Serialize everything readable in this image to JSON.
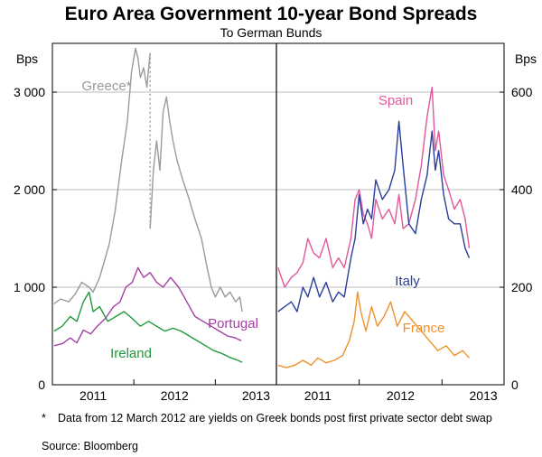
{
  "chart_data": {
    "type": "line",
    "title": "Euro Area Government 10-year Bond Spreads",
    "subtitle": "To German Bunds",
    "panels": [
      {
        "name": "left",
        "ylabel": "Bps",
        "ylim": [
          0,
          3500
        ],
        "yticks": [
          0,
          1000,
          2000,
          3000
        ],
        "ytick_labels": [
          "0",
          "1 000",
          "2 000",
          "3 000"
        ],
        "xlim": [
          2010.5,
          2013.25
        ],
        "xticks": [
          2011,
          2012,
          2013
        ],
        "xtick_labels": [
          "2011",
          "2012",
          "2013"
        ],
        "series": [
          {
            "name": "Greece*",
            "label": "Greece*",
            "color": "#9a9a9a",
            "x": [
              2010.52,
              2010.6,
              2010.7,
              2010.78,
              2010.86,
              2010.95,
              2011.0,
              2011.08,
              2011.15,
              2011.2,
              2011.27,
              2011.35,
              2011.42,
              2011.47,
              2011.52,
              2011.55,
              2011.58,
              2011.62,
              2011.66,
              2011.7
            ],
            "y": [
              830,
              880,
              850,
              930,
              1050,
              1000,
              950,
              1100,
              1300,
              1450,
              1780,
              2300,
              2700,
              3200,
              3450,
              3350,
              3150,
              3250,
              3050,
              3400
            ]
          },
          {
            "name": "Greece* (gap)",
            "label": "",
            "color": "#9a9a9a",
            "dashed": true,
            "x": [
              2011.7,
              2011.7
            ],
            "y": [
              3400,
              1600
            ]
          },
          {
            "name": "Greece* (post)",
            "label": "",
            "color": "#9a9a9a",
            "x": [
              2011.7,
              2011.74,
              2011.78,
              2011.82,
              2011.86,
              2011.9,
              2011.94,
              2011.98,
              2012.03,
              2012.1,
              2012.18,
              2012.25,
              2012.33,
              2012.4,
              2012.45,
              2012.5,
              2012.56,
              2012.62,
              2012.68,
              2012.75,
              2012.8,
              2012.83
            ],
            "y": [
              1600,
              2200,
              2500,
              2200,
              2800,
              2950,
              2700,
              2500,
              2300,
              2100,
              1900,
              1700,
              1500,
              1200,
              1000,
              900,
              1000,
              900,
              950,
              850,
              900,
              750
            ]
          },
          {
            "name": "Portugal",
            "label": "Portugal",
            "color": "#a340a3",
            "x": [
              2010.52,
              2010.62,
              2010.72,
              2010.8,
              2010.88,
              2010.97,
              2011.05,
              2011.15,
              2011.25,
              2011.33,
              2011.4,
              2011.48,
              2011.55,
              2011.62,
              2011.7,
              2011.78,
              2011.86,
              2011.95,
              2012.05,
              2012.15,
              2012.25,
              2012.35,
              2012.45,
              2012.55,
              2012.65,
              2012.75,
              2012.82
            ],
            "y": [
              400,
              420,
              480,
              430,
              560,
              520,
              600,
              680,
              800,
              850,
              1000,
              1050,
              1200,
              1100,
              1150,
              1050,
              1000,
              1100,
              1000,
              850,
              700,
              650,
              600,
              550,
              500,
              480,
              450
            ]
          },
          {
            "name": "Ireland",
            "label": "Ireland",
            "color": "#1e9a3a",
            "x": [
              2010.52,
              2010.62,
              2010.72,
              2010.8,
              2010.88,
              2010.95,
              2011.0,
              2011.08,
              2011.18,
              2011.28,
              2011.38,
              2011.48,
              2011.58,
              2011.68,
              2011.78,
              2011.88,
              2011.98,
              2012.08,
              2012.18,
              2012.28,
              2012.38,
              2012.48,
              2012.58,
              2012.68,
              2012.78,
              2012.83
            ],
            "y": [
              550,
              600,
              700,
              650,
              850,
              950,
              750,
              800,
              650,
              700,
              750,
              680,
              600,
              650,
              600,
              550,
              580,
              550,
              500,
              450,
              400,
              350,
              320,
              280,
              250,
              230
            ]
          }
        ]
      },
      {
        "name": "right",
        "ylabel": "Bps",
        "ylim": [
          0,
          700
        ],
        "yticks": [
          0,
          200,
          400,
          600
        ],
        "ytick_labels": [
          "0",
          "200",
          "400",
          "600"
        ],
        "xlim": [
          2010.5,
          2013.25
        ],
        "xticks": [
          2011,
          2012,
          2013
        ],
        "xtick_labels": [
          "2011",
          "2012",
          "2013"
        ],
        "series": [
          {
            "name": "Spain",
            "label": "Spain",
            "color": "#e2589a",
            "x": [
              2010.52,
              2010.6,
              2010.68,
              2010.75,
              2010.82,
              2010.88,
              2010.95,
              2011.02,
              2011.1,
              2011.18,
              2011.25,
              2011.32,
              2011.4,
              2011.45,
              2011.5,
              2011.55,
              2011.6,
              2011.65,
              2011.7,
              2011.78,
              2011.86,
              2011.93,
              2011.98,
              2012.03,
              2012.1,
              2012.18,
              2012.25,
              2012.32,
              2012.38,
              2012.42,
              2012.46,
              2012.52,
              2012.58,
              2012.65,
              2012.72,
              2012.78,
              2012.83
            ],
            "y": [
              240,
              200,
              220,
              230,
              250,
              300,
              270,
              260,
              300,
              240,
              260,
              240,
              300,
              380,
              400,
              350,
              330,
              300,
              380,
              340,
              360,
              330,
              390,
              320,
              330,
              380,
              450,
              550,
              610,
              480,
              520,
              430,
              400,
              360,
              380,
              340,
              280
            ]
          },
          {
            "name": "Italy",
            "label": "Italy",
            "color": "#2a3d9a",
            "x": [
              2010.52,
              2010.6,
              2010.68,
              2010.75,
              2010.82,
              2010.88,
              2010.95,
              2011.02,
              2011.1,
              2011.18,
              2011.25,
              2011.32,
              2011.4,
              2011.45,
              2011.5,
              2011.55,
              2011.6,
              2011.65,
              2011.7,
              2011.78,
              2011.86,
              2011.93,
              2011.98,
              2012.03,
              2012.1,
              2012.18,
              2012.25,
              2012.32,
              2012.38,
              2012.42,
              2012.46,
              2012.52,
              2012.58,
              2012.65,
              2012.72,
              2012.78,
              2012.83
            ],
            "y": [
              150,
              160,
              170,
              150,
              200,
              180,
              220,
              180,
              210,
              170,
              190,
              180,
              260,
              300,
              390,
              330,
              360,
              340,
              420,
              380,
              400,
              440,
              540,
              450,
              330,
              310,
              380,
              430,
              520,
              440,
              480,
              390,
              340,
              330,
              330,
              280,
              260
            ]
          },
          {
            "name": "France",
            "label": "France",
            "color": "#f0902a",
            "x": [
              2010.52,
              2010.62,
              2010.72,
              2010.82,
              2010.92,
              2011.0,
              2011.1,
              2011.2,
              2011.3,
              2011.38,
              2011.44,
              2011.48,
              2011.52,
              2011.58,
              2011.65,
              2011.72,
              2011.8,
              2011.88,
              2011.96,
              2012.05,
              2012.15,
              2012.25,
              2012.35,
              2012.45,
              2012.55,
              2012.65,
              2012.75,
              2012.83
            ],
            "y": [
              40,
              35,
              40,
              50,
              40,
              55,
              45,
              50,
              60,
              90,
              130,
              190,
              150,
              110,
              160,
              120,
              140,
              170,
              120,
              150,
              130,
              110,
              90,
              70,
              80,
              60,
              70,
              55
            ]
          }
        ]
      }
    ]
  },
  "footnote": {
    "marker": "*",
    "text": "Data from 12 March 2012 are yields on Greek bonds post first private sector debt swap"
  },
  "source": "Source: Bloomberg"
}
